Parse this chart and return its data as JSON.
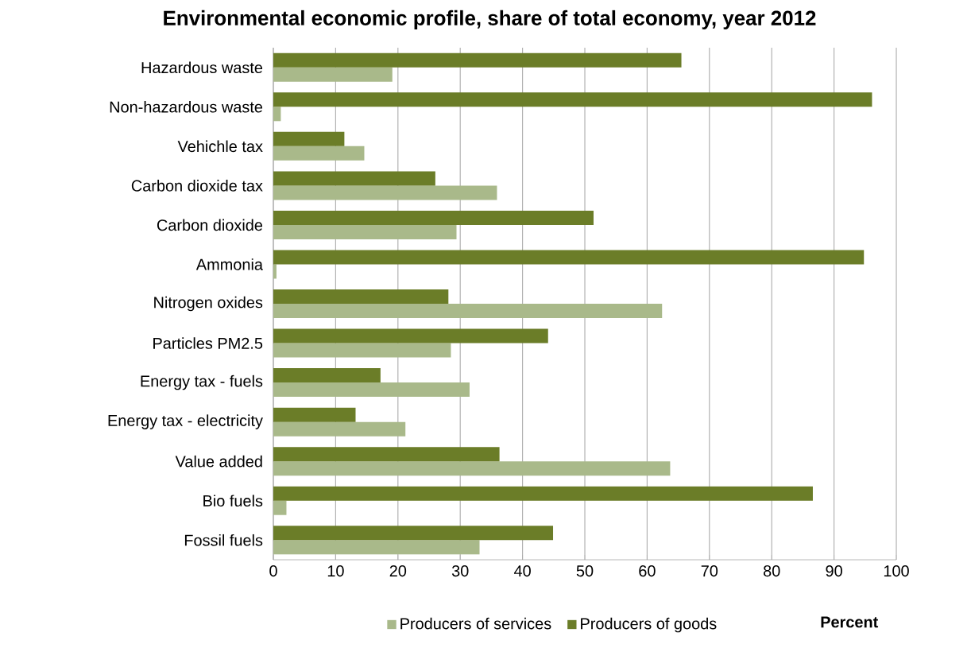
{
  "chart_data": {
    "type": "bar",
    "orientation": "horizontal",
    "title": "Environmental economic profile, share of total economy, year 2012",
    "xlabel": "Percent",
    "categories": [
      "Hazardous waste",
      "Non-hazardous waste",
      "Vehichle tax",
      "Carbon dioxide tax",
      "Carbon dioxide",
      "Ammonia",
      "Nitrogen oxides",
      "Particles PM2.5",
      "Energy tax - fuels",
      "Energy tax - electricity",
      "Value added",
      "Bio fuels",
      "Fossil fuels"
    ],
    "series": [
      {
        "name": "Producers of services",
        "color": "#a9b98a",
        "values": [
          19.1,
          1.2,
          14.6,
          35.9,
          29.4,
          0.5,
          62.4,
          28.5,
          31.5,
          21.2,
          63.7,
          2.1,
          33.1
        ]
      },
      {
        "name": "Producers of goods",
        "color": "#6b7d28",
        "values": [
          65.5,
          96.1,
          11.4,
          26.0,
          51.4,
          94.8,
          28.1,
          44.1,
          17.2,
          13.2,
          36.3,
          86.6,
          44.9
        ]
      }
    ],
    "xlim": [
      0,
      100
    ],
    "xticks": [
      0,
      10,
      20,
      30,
      40,
      50,
      60,
      70,
      80,
      90,
      100
    ],
    "grid": "x",
    "legend": "bottom"
  }
}
